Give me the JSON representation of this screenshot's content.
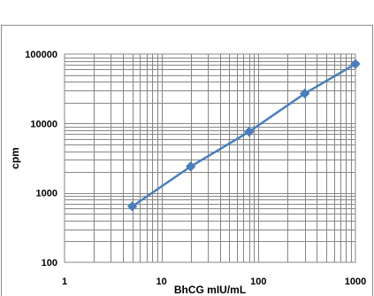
{
  "chart_data": {
    "type": "line",
    "title": "",
    "xlabel": "BhCG mIU/mL",
    "ylabel": "cpm",
    "xscale": "log",
    "yscale": "log",
    "xlim": [
      1,
      1000
    ],
    "ylim": [
      100,
      100000
    ],
    "grid": true,
    "legend": "none",
    "x_tick_labels": [
      "1",
      "10",
      "100",
      "1000"
    ],
    "y_tick_labels": [
      "100",
      "1000",
      "10000",
      "100000"
    ],
    "series": [
      {
        "x": [
          5,
          20,
          80,
          300,
          1000
        ],
        "y": [
          640,
          2400,
          7600,
          27000,
          72000
        ],
        "color": "#4a7ebb",
        "marker": "diamond"
      }
    ]
  }
}
